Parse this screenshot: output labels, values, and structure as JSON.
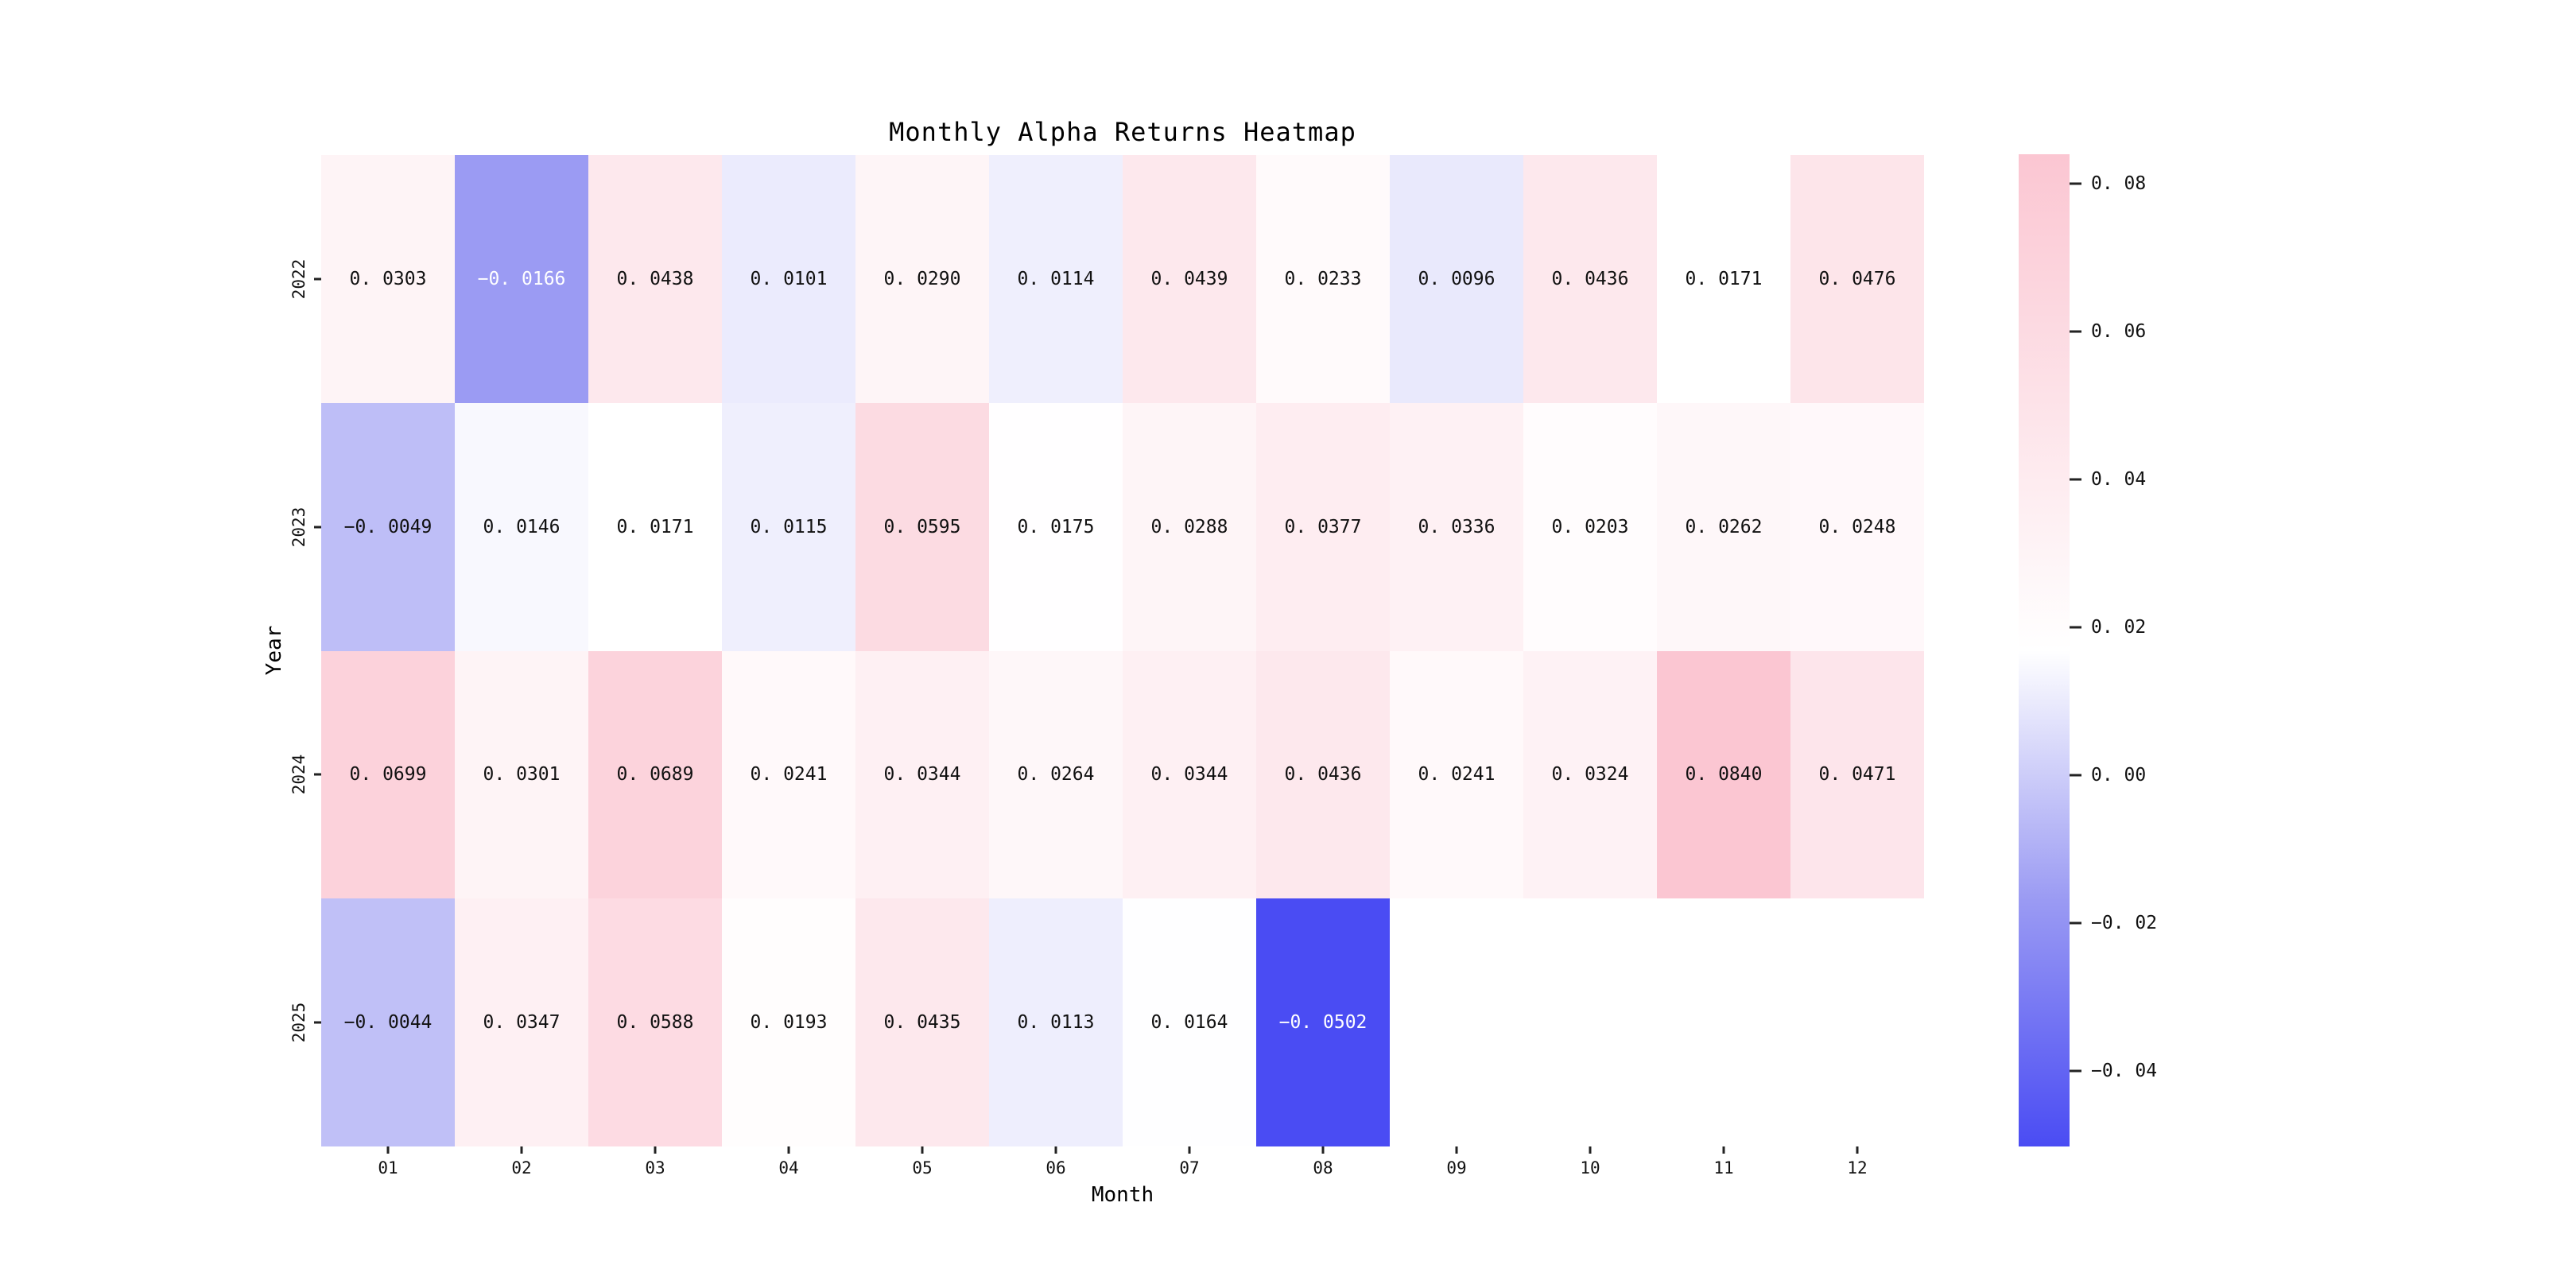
{
  "title": "Monthly Alpha Returns Heatmap",
  "axes": {
    "xlabel": "Month",
    "ylabel": "Year"
  },
  "chart_data": {
    "type": "heatmap",
    "title": "Monthly Alpha Returns Heatmap",
    "xlabel": "Month",
    "ylabel": "Year",
    "columns": [
      "01",
      "02",
      "03",
      "04",
      "05",
      "06",
      "07",
      "08",
      "09",
      "10",
      "11",
      "12"
    ],
    "rows": [
      "2022",
      "2023",
      "2024",
      "2025"
    ],
    "values": [
      [
        0.0303,
        -0.0166,
        0.0438,
        0.0101,
        0.029,
        0.0114,
        0.0439,
        0.0233,
        0.0096,
        0.0436,
        0.0171,
        0.0476
      ],
      [
        -0.0049,
        0.0146,
        0.0171,
        0.0115,
        0.0595,
        0.0175,
        0.0288,
        0.0377,
        0.0336,
        0.0203,
        0.0262,
        0.0248
      ],
      [
        0.0699,
        0.0301,
        0.0689,
        0.0241,
        0.0344,
        0.0264,
        0.0344,
        0.0436,
        0.0241,
        0.0324,
        0.084,
        0.0471
      ],
      [
        -0.0044,
        0.0347,
        0.0588,
        0.0193,
        0.0435,
        0.0113,
        0.0164,
        -0.0502,
        null,
        null,
        null,
        null
      ]
    ],
    "cell_labels": [
      [
        "0. 0303",
        "−0. 0166",
        "0. 0438",
        "0. 0101",
        "0. 0290",
        "0. 0114",
        "0. 0439",
        "0. 0233",
        "0. 0096",
        "0. 0436",
        "0. 0171",
        "0. 0476"
      ],
      [
        "−0. 0049",
        "0. 0146",
        "0. 0171",
        "0. 0115",
        "0. 0595",
        "0. 0175",
        "0. 0288",
        "0. 0377",
        "0. 0336",
        "0. 0203",
        "0. 0262",
        "0. 0248"
      ],
      [
        "0. 0699",
        "0. 0301",
        "0. 0689",
        "0. 0241",
        "0. 0344",
        "0. 0264",
        "0. 0344",
        "0. 0436",
        "0. 0241",
        "0. 0324",
        "0. 0840",
        "0. 0471"
      ],
      [
        "−0. 0044",
        "0. 0347",
        "0. 0588",
        "0. 0193",
        "0. 0435",
        "0. 0113",
        "0. 0164",
        "−0. 0502",
        null,
        null,
        null,
        null
      ]
    ],
    "colormap": {
      "vmin": -0.0502,
      "vmax": 0.084,
      "stops": [
        [
          0.0,
          "#4a4cf3"
        ],
        [
          0.25,
          "#9b9bf3"
        ],
        [
          0.5,
          "#ffffff"
        ],
        [
          1.0,
          "#fbc6d2"
        ]
      ]
    },
    "colorbar": {
      "position": "right",
      "ticks": [
        {
          "value": 0.08,
          "label": "0. 08"
        },
        {
          "value": 0.06,
          "label": "0. 06"
        },
        {
          "value": 0.04,
          "label": "0. 04"
        },
        {
          "value": 0.02,
          "label": "0. 02"
        },
        {
          "value": 0.0,
          "label": "0. 00"
        },
        {
          "value": -0.02,
          "label": "−0. 02"
        },
        {
          "value": -0.04,
          "label": "−0. 04"
        }
      ]
    },
    "grid": false,
    "missing_cells_note": "2025 months 09-12 have no data (blank)"
  }
}
